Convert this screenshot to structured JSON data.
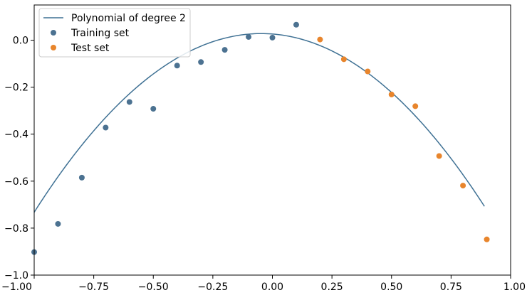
{
  "chart_data": {
    "type": "scatter",
    "title": "",
    "xlabel": "",
    "ylabel": "",
    "xlim": [
      -1.0,
      1.0
    ],
    "ylim": [
      -1.0,
      0.15
    ],
    "grid": false,
    "legend_position": "top-left",
    "x_ticks": [
      "−1.00",
      "−0.75",
      "−0.50",
      "−0.25",
      "0.00",
      "0.25",
      "0.50",
      "0.75",
      "1.00"
    ],
    "x_tick_values": [
      -1.0,
      -0.75,
      -0.5,
      -0.25,
      0.0,
      0.25,
      0.5,
      0.75,
      1.0
    ],
    "y_ticks": [
      "−1.0",
      "−0.8",
      "−0.6",
      "−0.4",
      "−0.2",
      "0.0"
    ],
    "y_tick_values": [
      -1.0,
      -0.8,
      -0.6,
      -0.4,
      -0.2,
      0.0
    ],
    "series": [
      {
        "name": "Polynomial of degree 2",
        "kind": "line",
        "color": "#3f7194",
        "coefficients": [
          0.0264,
          -0.0788,
          -0.8376
        ],
        "x_range": [
          -1.0,
          0.89
        ]
      },
      {
        "name": "Training set",
        "kind": "scatter",
        "color": "#4c7291",
        "x": [
          -1.0,
          -0.9,
          -0.8,
          -0.7,
          -0.6,
          -0.5,
          -0.4,
          -0.3,
          -0.2,
          -0.1,
          0.0,
          0.1
        ],
        "y": [
          -0.902,
          -0.782,
          -0.585,
          -0.372,
          -0.263,
          -0.292,
          -0.108,
          -0.093,
          -0.041,
          0.014,
          0.011,
          0.066
        ]
      },
      {
        "name": "Test set",
        "kind": "scatter",
        "color": "#e8852c",
        "x": [
          0.2,
          0.3,
          0.4,
          0.5,
          0.6,
          0.7,
          0.8,
          0.9
        ],
        "y": [
          0.003,
          -0.081,
          -0.133,
          -0.231,
          -0.281,
          -0.493,
          -0.619,
          -0.848
        ]
      }
    ]
  }
}
